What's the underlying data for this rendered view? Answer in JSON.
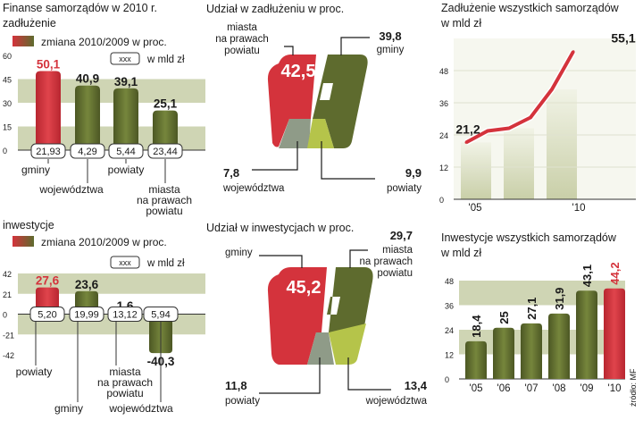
{
  "colors": {
    "red": "#d4333c",
    "olive": "#5e6b2e",
    "olive_light": "#8ea03f",
    "green_light": "#b5c44a",
    "grey_green": "#8f9b88",
    "band": "#cfd5b4",
    "text": "#1a1a1a"
  },
  "chart_data": [
    {
      "id": "debt_change",
      "type": "bar",
      "title": "Finanse samorządów w 2010 r.",
      "subtitle": "zadłużenie",
      "legend": "zmiana 2010/2009 w proc.",
      "unit_box": "xxx",
      "unit_label": "w mld zł",
      "ylim": [
        0,
        60
      ],
      "yticks": [
        "60",
        "45",
        "30",
        "15",
        "0"
      ],
      "categories": [
        "gminy",
        "województwa",
        "powiaty",
        "miasta na prawach powiatu"
      ],
      "values": [
        50.1,
        40.9,
        39.1,
        25.1
      ],
      "value_labels": [
        "50,1",
        "40,9",
        "39,1",
        "25,1"
      ],
      "amounts": [
        "21,93",
        "4,29",
        "5,44",
        "23,44"
      ],
      "category_lines": [
        [
          "gminy"
        ],
        [
          "województwa"
        ],
        [
          "powiaty"
        ],
        [
          "miasta",
          "na prawach",
          "powiatu"
        ]
      ]
    },
    {
      "id": "invest_change",
      "type": "bar",
      "subtitle": "inwestycje",
      "legend": "zmiana 2010/2009 w proc.",
      "unit_box": "xxx",
      "unit_label": "w mld zł",
      "ylim": [
        -42,
        42
      ],
      "yticks": [
        "42",
        "21",
        "0",
        "-21",
        "-42"
      ],
      "categories": [
        "powiaty",
        "gminy",
        "miasta na prawach powiatu",
        "województwa"
      ],
      "values": [
        27.6,
        23.6,
        1.6,
        -40.3
      ],
      "value_labels": [
        "27,6",
        "23,6",
        "1,6",
        "-40,3"
      ],
      "amounts": [
        "5,20",
        "19,99",
        "13,12",
        "5,94"
      ],
      "category_lines": [
        [
          "powiaty"
        ],
        [
          "gminy"
        ],
        [
          "miasta",
          "na prawach",
          "powiatu"
        ],
        [
          "województwa"
        ]
      ]
    },
    {
      "id": "debt_share",
      "type": "pie",
      "title": "Udział w zadłużeniu w proc.",
      "slices": [
        {
          "label": "miasta na prawach powiatu",
          "value": 42.5,
          "value_label": "42,5",
          "label_lines": [
            "miasta",
            "na prawach",
            "powiatu"
          ]
        },
        {
          "label": "gminy",
          "value": 39.8,
          "value_label": "39,8",
          "label_lines": [
            "gminy"
          ]
        },
        {
          "label": "województwa",
          "value": 7.8,
          "value_label": "7,8",
          "label_lines": [
            "województwa"
          ]
        },
        {
          "label": "powiaty",
          "value": 9.9,
          "value_label": "9,9",
          "label_lines": [
            "powiaty"
          ]
        }
      ]
    },
    {
      "id": "invest_share",
      "type": "pie",
      "title": "Udział w inwestycjach w proc.",
      "slices": [
        {
          "label": "gminy",
          "value": 45.2,
          "value_label": "45,2",
          "label_lines": [
            "gminy"
          ]
        },
        {
          "label": "miasta na prawach powiatu",
          "value": 29.7,
          "value_label": "29,7",
          "label_lines": [
            "miasta",
            "na prawach",
            "powiatu"
          ]
        },
        {
          "label": "powiaty",
          "value": 11.8,
          "value_label": "11,8",
          "label_lines": [
            "powiaty"
          ]
        },
        {
          "label": "województwa",
          "value": 13.4,
          "value_label": "13,4",
          "label_lines": [
            "województwa"
          ]
        }
      ]
    },
    {
      "id": "total_debt",
      "type": "line",
      "title": "Zadłużenie wszystkich samorządów",
      "unit_label": "w mld zł",
      "x": [
        2005,
        2006,
        2007,
        2008,
        2009,
        2010
      ],
      "xtick_labels": [
        "'05",
        "'10"
      ],
      "values": [
        21.2,
        25.5,
        26.5,
        30.5,
        41.0,
        55.1
      ],
      "labeled_points": [
        {
          "x": 2005,
          "label": "21,2"
        },
        {
          "x": 2010,
          "label": "55,1"
        }
      ],
      "ylim": [
        0,
        60
      ],
      "yticks": [
        "48",
        "36",
        "24",
        "12",
        "0"
      ]
    },
    {
      "id": "total_invest",
      "type": "bar",
      "title": "Inwestycje wszystkich samorządów",
      "unit_label": "w mld zł",
      "categories": [
        "'05",
        "'06",
        "'07",
        "'08",
        "'09",
        "'10"
      ],
      "values": [
        18.4,
        25.0,
        27.1,
        31.9,
        43.1,
        44.2
      ],
      "value_labels": [
        "18,4",
        "25",
        "27,1",
        "31,9",
        "43,1",
        "44,2"
      ],
      "ylim": [
        0,
        48
      ],
      "yticks": [
        "48",
        "36",
        "24",
        "12",
        "0"
      ],
      "highlight_index": 5
    }
  ],
  "source": "źródło: MF"
}
